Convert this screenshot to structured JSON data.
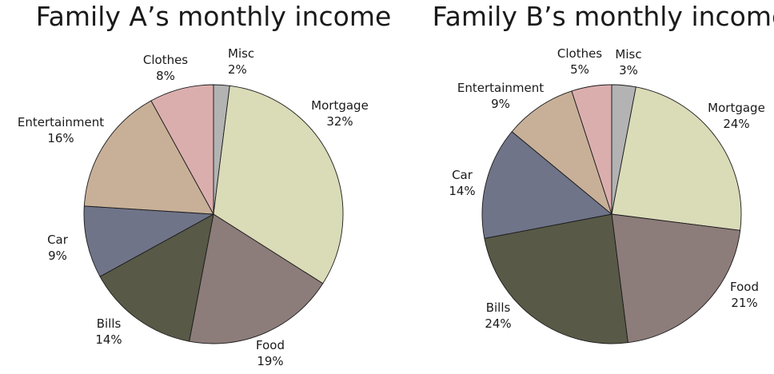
{
  "chart_data": [
    {
      "type": "pie",
      "title": "Family A’s monthly income",
      "categories": [
        "Misc",
        "Mortgage",
        "Food",
        "Bills",
        "Car",
        "Entertainment",
        "Clothes"
      ],
      "values": [
        2,
        32,
        19,
        14,
        9,
        16,
        8
      ],
      "labels": [
        "2%",
        "32%",
        "19%",
        "14%",
        "9%",
        "16%",
        "8%"
      ],
      "colors": [
        "#b3b3b3",
        "#dadbb7",
        "#8c7c7a",
        "#595947",
        "#6f7489",
        "#c8b098",
        "#dbaeae"
      ],
      "start_angle": "12 o'clock",
      "direction": "clockwise",
      "legend": "none"
    },
    {
      "type": "pie",
      "title": "Family B’s monthly income",
      "categories": [
        "Misc",
        "Mortgage",
        "Food",
        "Bills",
        "Car",
        "Entertainment",
        "Clothes"
      ],
      "values": [
        3,
        24,
        21,
        24,
        14,
        9,
        5
      ],
      "labels": [
        "3%",
        "24%",
        "21%",
        "24%",
        "14%",
        "9%",
        "5%"
      ],
      "colors": [
        "#b3b3b3",
        "#dadbb7",
        "#8c7c7a",
        "#595947",
        "#6f7489",
        "#c8b098",
        "#dbaeae"
      ],
      "start_angle": "12 o'clock",
      "direction": "clockwise",
      "legend": "none"
    }
  ]
}
